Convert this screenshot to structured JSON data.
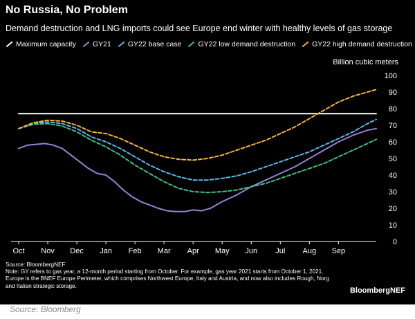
{
  "chart_data": {
    "type": "line",
    "title": "No Russia, No Problem",
    "subtitle": "Demand destruction and LNG imports could see Europe end winter with healthy levels of gas storage",
    "ylabel": "Billion cubic meters",
    "xlabel": "",
    "ylim": [
      0,
      100
    ],
    "yticks": [
      0,
      10,
      20,
      30,
      40,
      50,
      60,
      70,
      80,
      90,
      100
    ],
    "xlim": [
      0,
      12.3
    ],
    "x_tick_labels": [
      "Oct",
      "Nov",
      "Dec",
      "Jan",
      "Feb",
      "Mar",
      "Apr",
      "May",
      "Jun",
      "Jul",
      "Aug",
      "Sep"
    ],
    "grid": false,
    "legend_position": "top",
    "series": [
      {
        "name": "Maximum capacity",
        "color": "#ffffff",
        "style": "solid",
        "x": [
          0,
          12.3
        ],
        "y": [
          77,
          77
        ]
      },
      {
        "name": "GY21",
        "color": "#9b7fd6",
        "style": "solid",
        "x": [
          0,
          0.3,
          0.6,
          0.9,
          1.2,
          1.5,
          1.8,
          2.1,
          2.4,
          2.7,
          3.0,
          3.3,
          3.6,
          3.9,
          4.2,
          4.5,
          4.8,
          5.1,
          5.4,
          5.7,
          6.0,
          6.3,
          6.6,
          7.0,
          7.5,
          8.0,
          8.5,
          9.0,
          9.5,
          10.0,
          10.5,
          11.0,
          11.5,
          12.0,
          12.3
        ],
        "y": [
          56,
          58,
          58.5,
          59,
          58,
          56,
          52,
          48,
          44,
          41,
          40,
          36,
          31,
          27,
          24,
          22,
          20,
          18.5,
          18,
          18,
          19,
          18.5,
          20,
          24,
          28,
          33,
          37,
          41,
          45,
          50,
          55,
          60,
          64,
          67,
          68
        ]
      },
      {
        "name": "GY22 base case",
        "color": "#5bb8e8",
        "style": "dashed",
        "x": [
          0,
          0.5,
          1.0,
          1.5,
          2.0,
          2.5,
          3.0,
          3.5,
          4.0,
          4.5,
          5.0,
          5.5,
          6.0,
          6.5,
          7.0,
          7.5,
          8.0,
          8.5,
          9.0,
          9.5,
          10.0,
          10.5,
          11.0,
          11.5,
          12.0,
          12.3
        ],
        "y": [
          68,
          71,
          72,
          71,
          68,
          63,
          60,
          56,
          51,
          46,
          42,
          39,
          37,
          37,
          38,
          39.5,
          42,
          45,
          48,
          51,
          54,
          58,
          62,
          66,
          71,
          73.5
        ]
      },
      {
        "name": "GY22 low demand destruction",
        "color": "#3fbf8f",
        "style": "dashed",
        "x": [
          0,
          0.5,
          1.0,
          1.5,
          2.0,
          2.5,
          3.0,
          3.5,
          4.0,
          4.5,
          5.0,
          5.5,
          6.0,
          6.5,
          7.0,
          7.5,
          8.0,
          8.5,
          9.0,
          9.5,
          10.0,
          10.5,
          11.0,
          11.5,
          12.0,
          12.3
        ],
        "y": [
          68,
          70.5,
          71,
          69.5,
          66,
          61,
          57,
          52,
          46,
          41,
          36,
          32,
          30,
          29.5,
          30,
          31,
          33,
          35,
          38,
          41,
          44,
          47,
          51,
          55,
          59,
          61.5
        ]
      },
      {
        "name": "GY22 high demand destruction",
        "color": "#f2b53a",
        "style": "dashed",
        "x": [
          0,
          0.5,
          1.0,
          1.5,
          2.0,
          2.5,
          3.0,
          3.5,
          4.0,
          4.5,
          5.0,
          5.5,
          6.0,
          6.5,
          7.0,
          7.5,
          8.0,
          8.5,
          9.0,
          9.5,
          10.0,
          10.5,
          11.0,
          11.5,
          12.0,
          12.3
        ],
        "y": [
          68,
          71.5,
          73,
          72.5,
          70,
          66,
          65,
          62,
          58,
          54,
          51,
          49.5,
          49,
          50,
          52,
          55,
          58,
          61,
          65,
          69,
          74,
          79,
          84,
          87.5,
          90,
          91.5
        ]
      }
    ]
  },
  "footnote": {
    "source": "Source: BloombergNEF",
    "note": "Note: GY refers to gas year, a 12-month period starting from October. For example, gas year 2021 starts from October 1, 2021. Europe is the BNEF Europe Perimeter, which comprises Northwest Europe, Italy and Austria, and now also includes Rough, Norg and Italian strategic storage."
  },
  "brand": "BloombergNEF",
  "caption": "Source: Bloomberg"
}
